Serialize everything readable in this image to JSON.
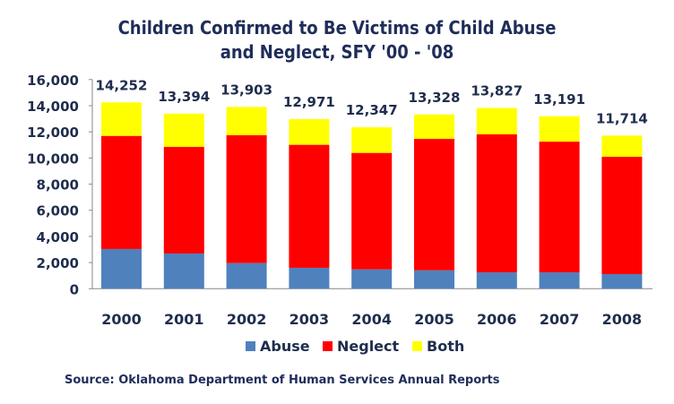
{
  "chart_data": {
    "type": "bar",
    "stacked": true,
    "title_lines": [
      "Children Confirmed to Be Victims of Child Abuse",
      "and Neglect, SFY '00 - '08"
    ],
    "categories": [
      "2000",
      "2001",
      "2002",
      "2003",
      "2004",
      "2005",
      "2006",
      "2007",
      "2008"
    ],
    "series": [
      {
        "name": "Abuse",
        "color": "#4f81bd",
        "values": [
          3040,
          2690,
          1960,
          1600,
          1480,
          1410,
          1250,
          1250,
          1120
        ]
      },
      {
        "name": "Neglect",
        "color": "#ff0000",
        "values": [
          8650,
          8160,
          9780,
          9410,
          8910,
          10050,
          10560,
          10000,
          8970
        ]
      },
      {
        "name": "Both",
        "color": "#ffff00",
        "values": [
          2562,
          2544,
          2163,
          1961,
          1957,
          1868,
          2017,
          1941,
          1624
        ]
      }
    ],
    "totals": [
      "14,252",
      "13,394",
      "13,903",
      "12,971",
      "12,347",
      "13,328",
      "13,827",
      "13,191",
      "11,714"
    ],
    "ylim": [
      0,
      16000
    ],
    "yticks": [
      "0",
      "2,000",
      "4,000",
      "6,000",
      "8,000",
      "10,000",
      "12,000",
      "14,000",
      "16,000"
    ],
    "legend_position": "bottom",
    "grid": false,
    "source": "Source: Oklahoma Department of Human Services Annual Reports"
  }
}
